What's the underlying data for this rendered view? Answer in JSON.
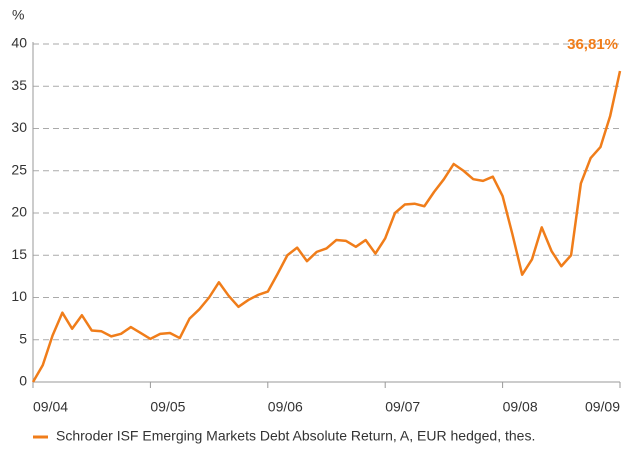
{
  "chart_data": {
    "type": "line",
    "y_label": "%",
    "x": [
      "09/04",
      "10/04",
      "11/04",
      "12/04",
      "01/05",
      "02/05",
      "03/05",
      "04/05",
      "05/05",
      "06/05",
      "07/05",
      "08/05",
      "09/05",
      "10/05",
      "11/05",
      "12/05",
      "01/06",
      "02/06",
      "03/06",
      "04/06",
      "05/06",
      "06/06",
      "07/06",
      "08/06",
      "09/06",
      "10/06",
      "11/06",
      "12/06",
      "01/07",
      "02/07",
      "03/07",
      "04/07",
      "05/07",
      "06/07",
      "07/07",
      "08/07",
      "09/07",
      "10/07",
      "11/07",
      "12/07",
      "01/08",
      "02/08",
      "03/08",
      "04/08",
      "05/08",
      "06/08",
      "07/08",
      "08/08",
      "09/08",
      "10/08",
      "11/08",
      "12/08",
      "01/09",
      "02/09",
      "03/09",
      "04/09",
      "05/09",
      "06/09",
      "07/09",
      "08/09",
      "09/09"
    ],
    "series": [
      {
        "name": "Schroder ISF Emerging Markets Debt Absolute Return, A, EUR hedged, thes.",
        "color": "#f07d1a",
        "values": [
          0,
          2,
          5.5,
          8.2,
          6.3,
          7.9,
          6.1,
          6,
          5.4,
          5.7,
          6.5,
          5.8,
          5.1,
          5.7,
          5.8,
          5.2,
          7.5,
          8.6,
          10,
          11.8,
          10.2,
          8.9,
          9.7,
          10.3,
          10.7,
          12.8,
          15,
          15.9,
          14.3,
          15.4,
          15.8,
          16.8,
          16.7,
          16,
          16.8,
          15.2,
          17,
          20,
          21,
          21.1,
          20.8,
          22.5,
          24,
          25.8,
          25,
          24,
          23.8,
          24.3,
          22,
          17.5,
          12.7,
          14.5,
          18.3,
          15.5,
          13.7,
          15,
          23.5,
          26.5,
          27.8,
          31.5,
          36.81
        ]
      }
    ],
    "end_label": "36,81%",
    "xticks": [
      "09/04",
      "09/05",
      "09/06",
      "09/07",
      "09/08",
      "09/09"
    ],
    "ylim": [
      0,
      40
    ],
    "yticks": [
      0,
      5,
      10,
      15,
      20,
      25,
      30,
      35,
      40
    ],
    "grid": true
  }
}
